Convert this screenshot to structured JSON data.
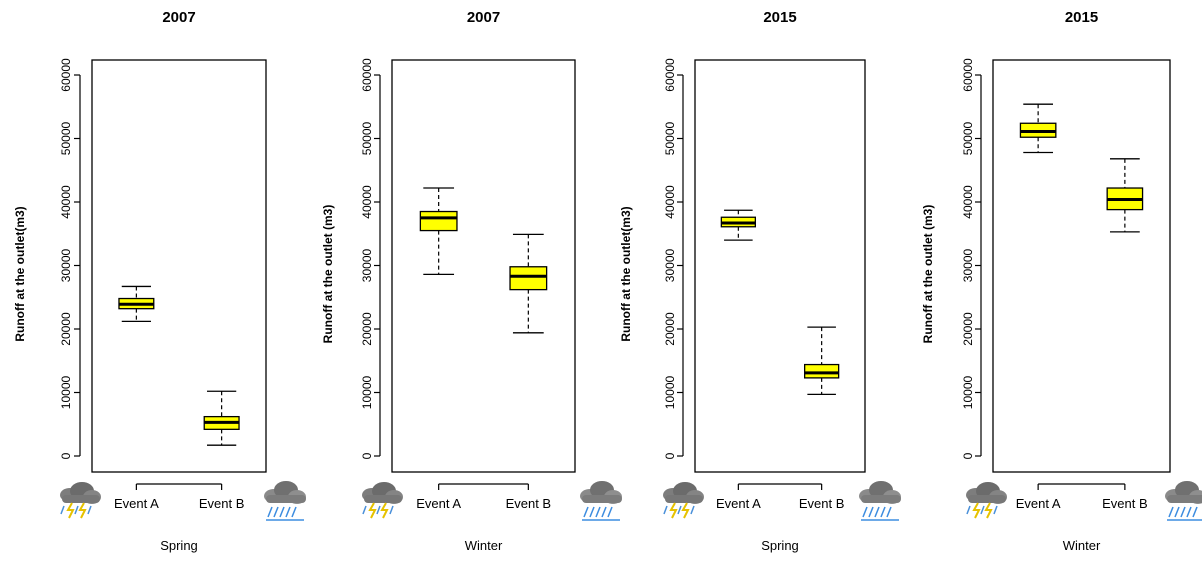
{
  "chart_data": [
    {
      "type": "boxplot",
      "title": "2007",
      "ylabel": "Runoff at the outlet(m3)",
      "xlabel": "Spring",
      "ylim": [
        0,
        60000
      ],
      "yticks": [
        0,
        10000,
        20000,
        30000,
        40000,
        50000,
        60000
      ],
      "categories": [
        "Event A",
        "Event B"
      ],
      "boxes": [
        {
          "min": 21200,
          "q1": 23200,
          "median": 23900,
          "q3": 24800,
          "max": 26700
        },
        {
          "min": 1700,
          "q1": 4200,
          "median": 5300,
          "q3": 6200,
          "max": 10200
        }
      ]
    },
    {
      "type": "boxplot",
      "title": "2007",
      "ylabel": "Runoff at the outlet (m3)",
      "xlabel": "Winter",
      "ylim": [
        0,
        60000
      ],
      "yticks": [
        0,
        10000,
        20000,
        30000,
        40000,
        50000,
        60000
      ],
      "categories": [
        "Event A",
        "Event B"
      ],
      "boxes": [
        {
          "min": 28600,
          "q1": 35500,
          "median": 37500,
          "q3": 38500,
          "max": 42200
        },
        {
          "min": 19400,
          "q1": 26200,
          "median": 28300,
          "q3": 29800,
          "max": 34900
        }
      ]
    },
    {
      "type": "boxplot",
      "title": "2015",
      "ylabel": "Runoff at the outlet(m3)",
      "xlabel": "Spring",
      "ylim": [
        0,
        60000
      ],
      "yticks": [
        0,
        10000,
        20000,
        30000,
        40000,
        50000,
        60000
      ],
      "categories": [
        "Event A",
        "Event B"
      ],
      "boxes": [
        {
          "min": 34000,
          "q1": 36100,
          "median": 36700,
          "q3": 37600,
          "max": 38700
        },
        {
          "min": 9700,
          "q1": 12300,
          "median": 13100,
          "q3": 14400,
          "max": 20300
        }
      ]
    },
    {
      "type": "boxplot",
      "title": "2015",
      "ylabel": "Runoff at the outlet (m3)",
      "xlabel": "Winter",
      "ylim": [
        0,
        60000
      ],
      "yticks": [
        0,
        10000,
        20000,
        30000,
        40000,
        50000,
        60000
      ],
      "categories": [
        "Event A",
        "Event B"
      ],
      "boxes": [
        {
          "min": 47800,
          "q1": 50200,
          "median": 51100,
          "q3": 52400,
          "max": 55400
        },
        {
          "min": 35300,
          "q1": 38800,
          "median": 40400,
          "q3": 42200,
          "max": 46800
        }
      ]
    }
  ],
  "style": {
    "box_fill": "#ffff00",
    "line_color": "#000000"
  },
  "icons": {
    "event_a": "thunderstorm-cloud-icon",
    "event_b": "rain-cloud-icon"
  }
}
